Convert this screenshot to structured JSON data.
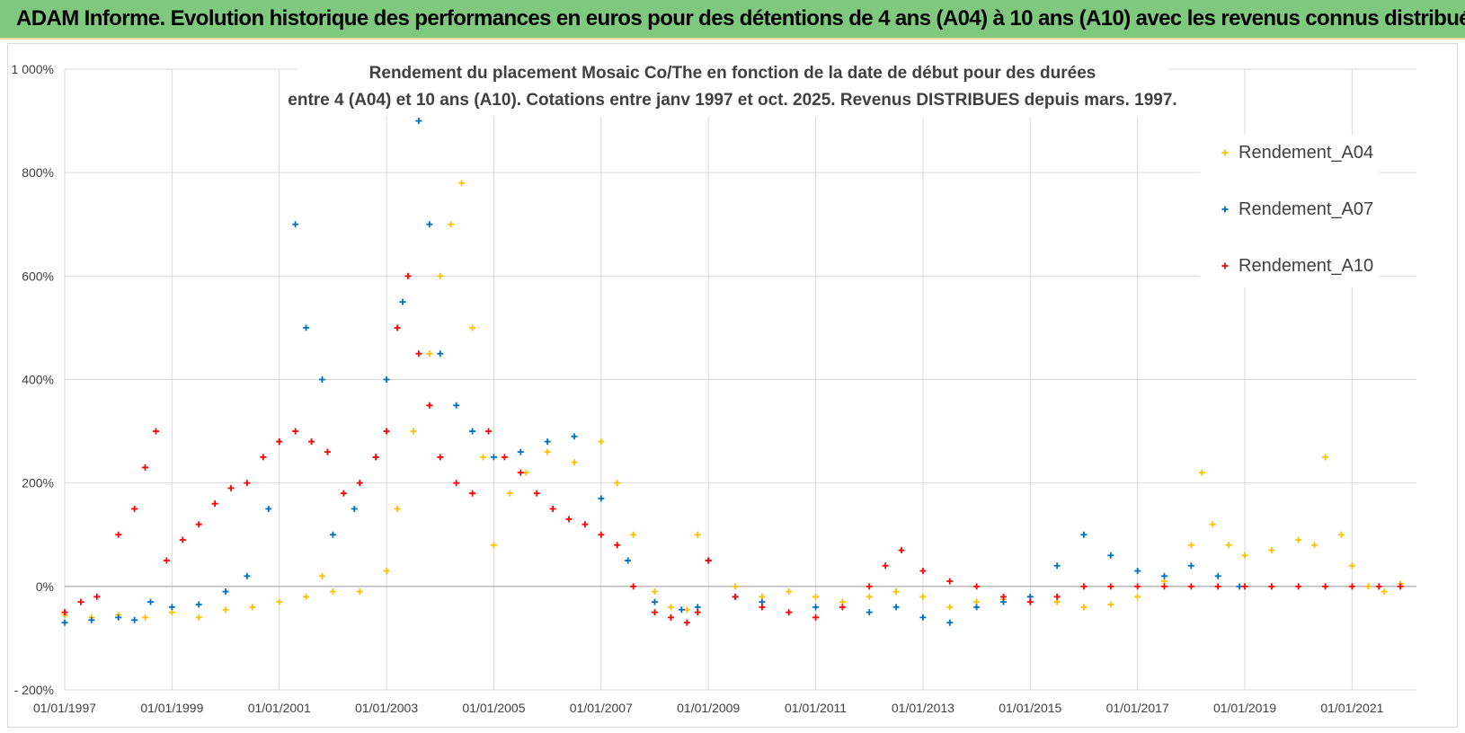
{
  "banner": {
    "title": "ADAM Informe. Evolution historique des performances en euros pour des détentions de 4 ans (A04) à 10 ans (A10) avec les revenus connus distribués"
  },
  "colors": {
    "banner_bg": "#7fc97f",
    "A04": "#ffc000",
    "A07": "#0070c0",
    "A10": "#ff0000",
    "grid": "#d9d9d9",
    "text": "#404040"
  },
  "chart_data": {
    "type": "scatter",
    "title_lines": [
      "Rendement du placement Mosaic Co/The en fonction de la date de début pour des durées",
      "entre 4 (A04) et 10 ans (A10). Cotations entre janv 1997 et oct. 2025. Revenus DISTRIBUES depuis mars. 1997."
    ],
    "x_ticks": [
      "01/01/1997",
      "01/01/1999",
      "01/01/2001",
      "01/01/2003",
      "01/01/2005",
      "01/01/2007",
      "01/01/2009",
      "01/01/2011",
      "01/01/2013",
      "01/01/2015",
      "01/01/2017",
      "01/01/2019",
      "01/01/2021"
    ],
    "y_ticks": [
      "1 000%",
      "800%",
      "600%",
      "400%",
      "200%",
      "0%",
      "- 200%"
    ],
    "xlim": [
      1997.0,
      2022.2
    ],
    "ylim": [
      -200,
      1000
    ],
    "grid": true,
    "legend_position": "top-right",
    "marker": "+",
    "series": [
      {
        "name": "Rendement_A04",
        "color": "#ffc000",
        "x": [
          1997.0,
          1997.5,
          1998.0,
          1998.5,
          1999.0,
          1999.5,
          2000.0,
          2000.5,
          2001.0,
          2001.5,
          2001.8,
          2002.0,
          2002.5,
          2003.0,
          2003.2,
          2003.5,
          2003.8,
          2004.0,
          2004.2,
          2004.4,
          2004.6,
          2004.8,
          2005.0,
          2005.3,
          2005.6,
          2006.0,
          2006.5,
          2007.0,
          2007.3,
          2007.6,
          2008.0,
          2008.3,
          2008.6,
          2008.8,
          2009.0,
          2009.5,
          2010.0,
          2010.5,
          2011.0,
          2011.5,
          2012.0,
          2012.5,
          2013.0,
          2013.5,
          2014.0,
          2014.5,
          2015.0,
          2015.5,
          2016.0,
          2016.5,
          2017.0,
          2017.5,
          2018.0,
          2018.2,
          2018.4,
          2018.7,
          2019.0,
          2019.5,
          2020.0,
          2020.3,
          2020.5,
          2020.8,
          2021.0,
          2021.3,
          2021.6,
          2021.9
        ],
        "y": [
          -55,
          -60,
          -55,
          -60,
          -50,
          -60,
          -45,
          -40,
          -30,
          -20,
          20,
          -10,
          -10,
          30,
          150,
          300,
          450,
          600,
          700,
          780,
          500,
          250,
          80,
          180,
          220,
          260,
          240,
          280,
          200,
          100,
          -10,
          -40,
          -45,
          100,
          50,
          0,
          -20,
          -10,
          -20,
          -30,
          -20,
          -10,
          -20,
          -40,
          -30,
          -25,
          -20,
          -30,
          -40,
          -35,
          -20,
          10,
          80,
          220,
          120,
          80,
          60,
          70,
          90,
          80,
          250,
          100,
          40,
          0,
          -10,
          5
        ]
      },
      {
        "name": "Rendement_A07",
        "color": "#0070c0",
        "x": [
          1997.0,
          1997.5,
          1998.0,
          1998.3,
          1998.6,
          1999.0,
          1999.5,
          2000.0,
          2000.4,
          2000.8,
          2001.0,
          2001.3,
          2001.5,
          2001.8,
          2002.0,
          2002.4,
          2002.8,
          2003.0,
          2003.3,
          2003.6,
          2003.8,
          2004.0,
          2004.3,
          2004.6,
          2005.0,
          2005.5,
          2006.0,
          2006.5,
          2007.0,
          2007.5,
          2008.0,
          2008.5,
          2008.8,
          2009.0,
          2009.5,
          2010.0,
          2011.0,
          2012.0,
          2012.5,
          2013.0,
          2013.5,
          2014.0,
          2014.5,
          2015.0,
          2015.5,
          2016.0,
          2016.5,
          2017.0,
          2017.5,
          2018.0,
          2018.5,
          2018.9
        ],
        "y": [
          -70,
          -65,
          -60,
          -65,
          -30,
          -40,
          -35,
          -10,
          20,
          150,
          280,
          700,
          500,
          400,
          100,
          150,
          250,
          400,
          550,
          900,
          700,
          450,
          350,
          300,
          250,
          260,
          280,
          290,
          170,
          50,
          -30,
          -45,
          -40,
          50,
          -20,
          -30,
          -40,
          -50,
          -40,
          -60,
          -70,
          -40,
          -30,
          -20,
          40,
          100,
          60,
          30,
          20,
          40,
          20,
          0
        ]
      },
      {
        "name": "Rendement_A10",
        "color": "#ff0000",
        "x": [
          1997.0,
          1997.3,
          1997.6,
          1998.0,
          1998.3,
          1998.5,
          1998.7,
          1998.9,
          1999.2,
          1999.5,
          1999.8,
          2000.1,
          2000.4,
          2000.7,
          2001.0,
          2001.3,
          2001.6,
          2001.9,
          2002.2,
          2002.5,
          2002.8,
          2003.0,
          2003.2,
          2003.4,
          2003.6,
          2003.8,
          2004.0,
          2004.3,
          2004.6,
          2004.9,
          2005.2,
          2005.5,
          2005.8,
          2006.1,
          2006.4,
          2006.7,
          2007.0,
          2007.3,
          2007.6,
          2008.0,
          2008.3,
          2008.6,
          2008.8,
          2009.0,
          2009.5,
          2010.0,
          2010.5,
          2011.0,
          2011.5,
          2012.0,
          2012.3,
          2012.6,
          2013.0,
          2013.5,
          2014.0,
          2014.5,
          2015.0,
          2015.5,
          2016.0,
          2016.5,
          2017.0,
          2017.5,
          2018.0,
          2018.5,
          2019.0,
          2019.5,
          2020.0,
          2020.5,
          2021.0,
          2021.5,
          2021.9
        ],
        "y": [
          -50,
          -30,
          -20,
          100,
          150,
          230,
          300,
          50,
          90,
          120,
          160,
          190,
          200,
          250,
          280,
          300,
          280,
          260,
          180,
          200,
          250,
          300,
          500,
          600,
          450,
          350,
          250,
          200,
          180,
          300,
          250,
          220,
          180,
          150,
          130,
          120,
          100,
          80,
          0,
          -50,
          -60,
          -70,
          -50,
          50,
          -20,
          -40,
          -50,
          -60,
          -40,
          0,
          40,
          70,
          30,
          10,
          0,
          -20,
          -30,
          -20,
          0,
          0,
          0,
          0,
          0,
          0,
          0,
          0,
          0,
          0,
          0,
          0,
          0
        ]
      }
    ]
  }
}
